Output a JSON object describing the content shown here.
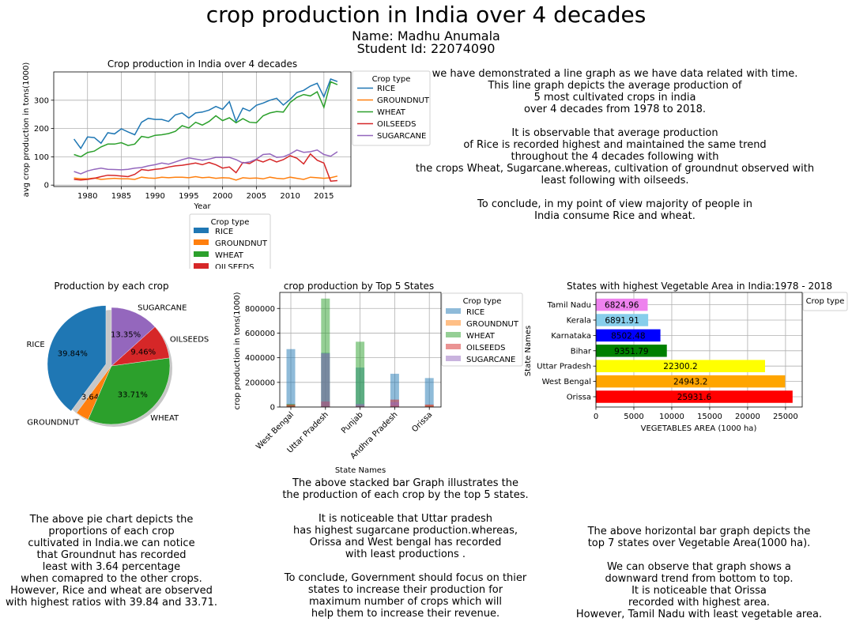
{
  "header": {
    "title": "crop production in India over 4 decades",
    "name_line": "Name: Madhu Anumala",
    "id_line": "Student Id: 22074090"
  },
  "texts": {
    "line_desc": "we have demonstrated a line graph as we have data related with time.\nThis line graph depicts the average production of\n5 most cultivated crops in india\nover 4 decades from 1978 to 2018.\n\nIt is observable that average production\nof Rice is recorded highest and maintained the same trend\nthroughout the 4 decades following with\nthe crops Wheat, Sugarcane.whereas, cultivation of groundnut observed with\nleast  following with oilseeds.\n\nTo conclude, in my point of view majority of people in\nIndia consume Rice and wheat.",
    "pie_desc": "The above pie chart depicts the\nproportions of each crop\ncultivated in India.we can notice\nthat Groundnut has recorded\nleast with 3.64 percentage\nwhen comapred to the other crops.\nHowever, Rice and wheat are observed\nwith highest ratios with 39.84 and 33.71.",
    "bar_desc": "The above stacked bar Graph illustrates the\nthe production of each crop by the top 5 states.\n\nIt is noticeable that Uttar pradesh\nhas highest sugarcane production.whereas,\nOrissa and West bengal has recorded\nwith least productions .\n\nTo conclude, Government should focus on thier\nstates to increase their production for\nmaximum number of crops which will\nhelp them to increase their revenue.",
    "hbar_desc": "The above horizontal bar graph depicts the\ntop 7 states over Vegetable Area(1000 ha).\n\nWe can observe that graph shows a\ndownward trend from bottom to top.\nIt is noticeable that Orissa\nrecorded with highest area.\nHowever, Tamil Nadu with least vegetable area."
  },
  "colors": {
    "RICE": "#1f77b4",
    "GROUNDNUT": "#ff7f0e",
    "WHEAT": "#2ca02c",
    "OILSEEDS": "#d62728",
    "SUGARCANE": "#9467bd"
  },
  "legend_title": "Crop type",
  "chart_data": [
    {
      "type": "line",
      "title": "Crop production in India over 4 decades",
      "xlabel": "Year",
      "ylabel": "avg crop production in tons(1000)",
      "x": [
        1978,
        1979,
        1980,
        1981,
        1982,
        1983,
        1984,
        1985,
        1986,
        1987,
        1988,
        1989,
        1990,
        1991,
        1992,
        1993,
        1994,
        1995,
        1996,
        1997,
        1998,
        1999,
        2000,
        2001,
        2002,
        2003,
        2004,
        2005,
        2006,
        2007,
        2008,
        2009,
        2010,
        2011,
        2012,
        2013,
        2014,
        2015,
        2016,
        2017
      ],
      "xlim": [
        1975,
        2019
      ],
      "ylim": [
        -5,
        400
      ],
      "xticks": [
        1980,
        1985,
        1990,
        1995,
        2000,
        2005,
        2010,
        2015
      ],
      "yticks": [
        0,
        100,
        200,
        300
      ],
      "grid": true,
      "legend_position": "right-outside",
      "series": [
        {
          "name": "RICE",
          "values": [
            163,
            130,
            170,
            168,
            148,
            185,
            181,
            199,
            188,
            178,
            222,
            236,
            232,
            232,
            225,
            248,
            255,
            237,
            255,
            258,
            265,
            278,
            268,
            295,
            225,
            272,
            262,
            282,
            290,
            300,
            307,
            283,
            303,
            327,
            335,
            350,
            360,
            312,
            375,
            366
          ]
        },
        {
          "name": "GROUNDNUT",
          "values": [
            25,
            22,
            22,
            25,
            20,
            22,
            24,
            22,
            22,
            20,
            28,
            25,
            24,
            28,
            26,
            28,
            28,
            26,
            30,
            26,
            28,
            24,
            26,
            25,
            18,
            26,
            24,
            25,
            22,
            28,
            24,
            22,
            28,
            24,
            20,
            28,
            26,
            24,
            26,
            32
          ]
        },
        {
          "name": "WHEAT",
          "values": [
            108,
            100,
            115,
            120,
            135,
            145,
            145,
            150,
            140,
            145,
            172,
            168,
            176,
            178,
            182,
            190,
            210,
            202,
            222,
            212,
            225,
            245,
            228,
            238,
            220,
            235,
            222,
            220,
            245,
            255,
            260,
            258,
            292,
            310,
            320,
            315,
            330,
            275,
            365,
            355
          ]
        },
        {
          "name": "OILSEEDS",
          "values": [
            20,
            18,
            20,
            24,
            30,
            35,
            34,
            32,
            30,
            38,
            55,
            52,
            56,
            58,
            64,
            68,
            70,
            74,
            78,
            72,
            80,
            72,
            60,
            64,
            44,
            80,
            76,
            90,
            82,
            92,
            82,
            90,
            104,
            95,
            75,
            110,
            88,
            78,
            14,
            16
          ]
        },
        {
          "name": "SUGARCANE",
          "values": [
            48,
            40,
            50,
            56,
            60,
            56,
            55,
            54,
            56,
            60,
            62,
            68,
            72,
            78,
            74,
            82,
            90,
            96,
            92,
            88,
            92,
            98,
            98,
            98,
            90,
            78,
            82,
            92,
            108,
            110,
            98,
            100,
            110,
            124,
            116,
            118,
            124,
            108,
            102,
            118
          ]
        }
      ]
    },
    {
      "type": "pie",
      "title": "Production by each crop",
      "labels": [
        "RICE",
        "GROUNDNUT",
        "WHEAT",
        "OILSEEDS",
        "SUGARCANE"
      ],
      "values": [
        39.84,
        3.64,
        33.71,
        9.46,
        13.35
      ],
      "label_text": [
        "39.84%",
        "3.64%",
        "33.71%",
        "9.46%",
        "13.35%"
      ],
      "explode": [
        0.1,
        0,
        0,
        0,
        0
      ],
      "legend_position": "above"
    },
    {
      "type": "bar",
      "title": "crop production by Top 5 States",
      "xlabel": "State Names",
      "ylabel": "crop production in tons(1000)",
      "categories": [
        "West Bengal",
        "Uttar Pradesh",
        "Punjab",
        "Andhra Pradesh",
        "Orissa"
      ],
      "ylim": [
        0,
        930000
      ],
      "yticks": [
        0,
        200000,
        400000,
        600000,
        800000
      ],
      "legend_position": "right-outside",
      "series": [
        {
          "name": "RICE",
          "values": [
            470000,
            440000,
            320000,
            270000,
            235000
          ]
        },
        {
          "name": "GROUNDNUT",
          "values": [
            15000,
            5000,
            3000,
            15000,
            15000
          ]
        },
        {
          "name": "WHEAT",
          "values": [
            25000,
            880000,
            530000,
            2000,
            1000
          ]
        },
        {
          "name": "OILSEEDS",
          "values": [
            20000,
            45000,
            10000,
            60000,
            20000
          ]
        },
        {
          "name": "SUGARCANE",
          "values": [
            3000,
            435000,
            25000,
            40000,
            2000
          ]
        }
      ]
    },
    {
      "type": "bar",
      "orientation": "horizontal",
      "title": "States with highest Vegetable Area in India:1978 - 2018",
      "xlabel": "VEGETABLES AREA (1000 ha)",
      "ylabel": "State Names",
      "categories": [
        "Orissa",
        "West Bengal",
        "Uttar Pradesh",
        "Bihar",
        "Karnataka",
        "Kerala",
        "Tamil Nadu"
      ],
      "values": [
        25931.6,
        24943.2,
        22300.2,
        9351.79,
        8502.48,
        6891.91,
        6824.96
      ],
      "value_labels": [
        "25931.6",
        "24943.2",
        "22300.2",
        "9351.79",
        "8502.48",
        "6891.91",
        "6824.96"
      ],
      "bar_colors": [
        "#ff0000",
        "#ffa500",
        "#ffff00",
        "#008000",
        "#0000ff",
        "#87ceeb",
        "#ee82ee"
      ],
      "xlim": [
        0,
        27200
      ],
      "xticks": [
        0,
        5000,
        10000,
        15000,
        20000,
        25000
      ],
      "legend_title": "Crop type",
      "legend_position": "right-outside"
    }
  ]
}
